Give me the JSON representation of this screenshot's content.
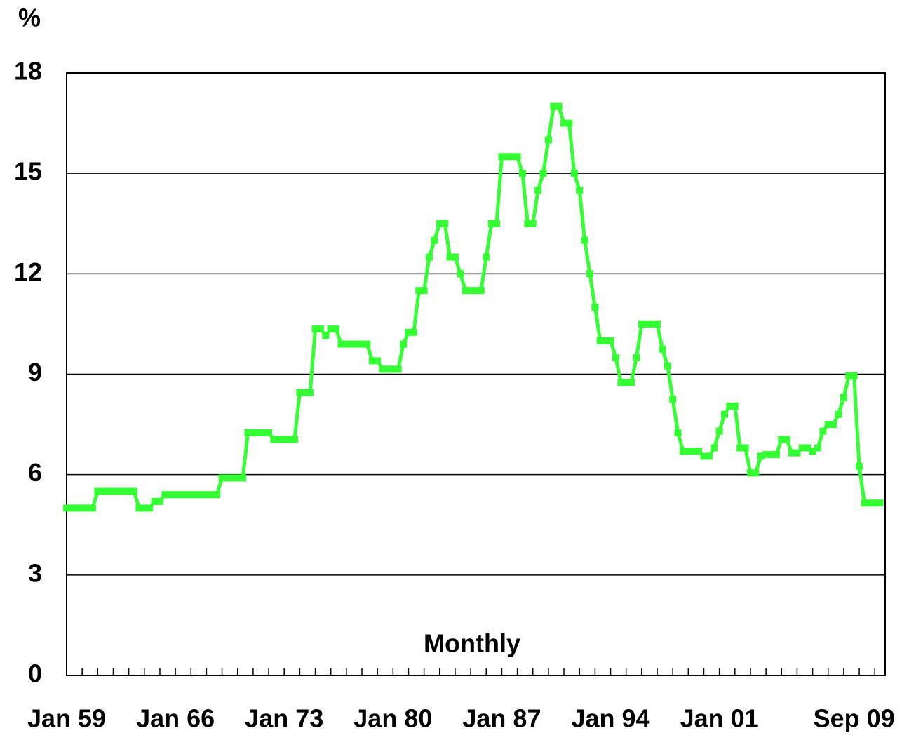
{
  "chart_data": {
    "type": "line",
    "title": "%",
    "annotation": "Monthly",
    "categories": [
      "Jan 59",
      null,
      null,
      null,
      null,
      null,
      null,
      null,
      null,
      null,
      null,
      null,
      null,
      null,
      null,
      null,
      null,
      null,
      null,
      null,
      null,
      "Jan 66",
      null,
      null,
      null,
      null,
      null,
      null,
      null,
      null,
      null,
      null,
      null,
      null,
      null,
      null,
      null,
      null,
      null,
      null,
      null,
      null,
      "Jan 73",
      null,
      null,
      null,
      null,
      null,
      null,
      null,
      null,
      null,
      null,
      null,
      null,
      null,
      null,
      null,
      null,
      null,
      null,
      null,
      null,
      "Jan 80",
      null,
      null,
      null,
      null,
      null,
      null,
      null,
      null,
      null,
      null,
      null,
      null,
      null,
      null,
      null,
      null,
      null,
      null,
      null,
      null,
      "Jan 87",
      null,
      null,
      null,
      null,
      null,
      null,
      null,
      null,
      null,
      null,
      null,
      null,
      null,
      null,
      null,
      null,
      null,
      null,
      null,
      null,
      "Jan 94",
      null,
      null,
      null,
      null,
      null,
      null,
      null,
      null,
      null,
      null,
      null,
      null,
      null,
      null,
      null,
      null,
      null,
      null,
      null,
      null,
      "Jan 01",
      null,
      null,
      null,
      null,
      null,
      null,
      null,
      null,
      null,
      null,
      null,
      null,
      null,
      null,
      null,
      null,
      null,
      null,
      null,
      null,
      null,
      null,
      null,
      null,
      null,
      "Sep 09",
      null,
      null,
      null,
      null,
      null
    ],
    "series": [
      {
        "color": "#33ff33",
        "values": [
          5.0,
          5.0,
          5.0,
          5.0,
          5.0,
          5.0,
          5.5,
          5.5,
          5.5,
          5.5,
          5.5,
          5.5,
          5.5,
          5.5,
          5.0,
          5.0,
          5.0,
          5.2,
          5.2,
          5.4,
          5.4,
          5.4,
          5.4,
          5.4,
          5.4,
          5.4,
          5.4,
          5.4,
          5.4,
          5.4,
          5.9,
          5.9,
          5.9,
          5.9,
          5.9,
          7.25,
          7.25,
          7.25,
          7.25,
          7.25,
          7.05,
          7.05,
          7.05,
          7.05,
          7.05,
          8.45,
          8.45,
          8.45,
          10.35,
          10.35,
          10.15,
          10.35,
          10.35,
          9.9,
          9.9,
          9.9,
          9.9,
          9.9,
          9.9,
          9.4,
          9.4,
          9.15,
          9.15,
          9.15,
          9.15,
          9.9,
          10.25,
          10.25,
          11.5,
          11.5,
          12.5,
          13.0,
          13.5,
          13.5,
          12.5,
          12.5,
          12.0,
          11.5,
          11.5,
          11.5,
          11.5,
          12.5,
          13.5,
          13.5,
          15.5,
          15.5,
          15.5,
          15.5,
          15.0,
          13.5,
          13.5,
          14.5,
          15.0,
          16.0,
          17.0,
          17.0,
          16.5,
          16.5,
          15.0,
          14.5,
          13.0,
          12.0,
          11.0,
          10.0,
          10.0,
          10.0,
          9.5,
          8.75,
          8.75,
          8.75,
          9.5,
          10.5,
          10.5,
          10.5,
          10.5,
          9.75,
          9.25,
          8.25,
          7.25,
          6.7,
          6.7,
          6.7,
          6.7,
          6.55,
          6.55,
          6.8,
          7.3,
          7.8,
          8.05,
          8.05,
          6.8,
          6.8,
          6.05,
          6.05,
          6.55,
          6.6,
          6.6,
          6.6,
          7.05,
          7.05,
          6.65,
          6.65,
          6.8,
          6.8,
          6.7,
          6.8,
          7.3,
          7.5,
          7.5,
          7.8,
          8.3,
          8.95,
          8.95,
          6.25,
          5.15,
          5.15,
          5.15,
          5.15
        ]
      }
    ],
    "ylim": [
      0,
      18
    ],
    "yticks": [
      0,
      3,
      6,
      9,
      12,
      15,
      18
    ],
    "grid": true
  }
}
